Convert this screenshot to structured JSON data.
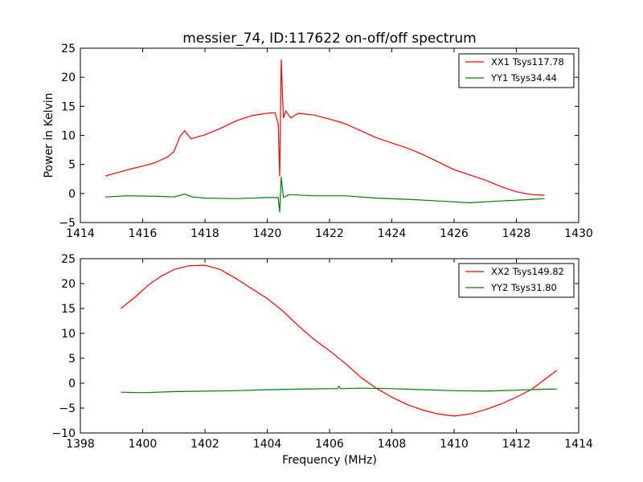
{
  "title": "messier_74, ID:117622 on-off/off spectrum",
  "chart_data": [
    {
      "type": "line",
      "ylabel": "Power in Kelvin",
      "xlabel": "",
      "xlim": [
        1414,
        1430
      ],
      "ylim": [
        -5,
        25
      ],
      "xticks": [
        "1414",
        "1416",
        "1418",
        "1420",
        "1422",
        "1424",
        "1426",
        "1428",
        "1430"
      ],
      "yticks": [
        "25",
        "20",
        "15",
        "10",
        "5",
        "0",
        "−5"
      ],
      "legend_position": "top-right",
      "series": [
        {
          "name": "XX1 Tsys117.78",
          "color": "#ff0000",
          "points": [
            [
              1414.8,
              3.0
            ],
            [
              1415.2,
              3.6
            ],
            [
              1415.6,
              4.2
            ],
            [
              1416.0,
              4.7
            ],
            [
              1416.4,
              5.3
            ],
            [
              1416.8,
              6.3
            ],
            [
              1417.0,
              7.2
            ],
            [
              1417.2,
              9.8
            ],
            [
              1417.35,
              10.8
            ],
            [
              1417.55,
              9.4
            ],
            [
              1418.0,
              10.1
            ],
            [
              1418.5,
              11.2
            ],
            [
              1419.0,
              12.5
            ],
            [
              1419.5,
              13.4
            ],
            [
              1420.0,
              13.8
            ],
            [
              1420.25,
              13.9
            ],
            [
              1420.35,
              12.0
            ],
            [
              1420.4,
              3.0
            ],
            [
              1420.45,
              23.0
            ],
            [
              1420.52,
              13.0
            ],
            [
              1420.6,
              14.2
            ],
            [
              1420.75,
              13.0
            ],
            [
              1421.0,
              13.8
            ],
            [
              1421.5,
              13.5
            ],
            [
              1422.0,
              12.8
            ],
            [
              1422.5,
              12.0
            ],
            [
              1423.0,
              10.8
            ],
            [
              1423.5,
              9.6
            ],
            [
              1424.0,
              8.7
            ],
            [
              1424.5,
              7.8
            ],
            [
              1425.0,
              6.7
            ],
            [
              1425.5,
              5.4
            ],
            [
              1426.0,
              4.1
            ],
            [
              1426.5,
              3.2
            ],
            [
              1427.0,
              2.3
            ],
            [
              1427.5,
              1.2
            ],
            [
              1428.0,
              0.3
            ],
            [
              1428.5,
              -0.2
            ],
            [
              1428.9,
              -0.3
            ]
          ]
        },
        {
          "name": "YY1 Tsys34.44",
          "color": "#008000",
          "points": [
            [
              1414.8,
              -0.6
            ],
            [
              1415.5,
              -0.4
            ],
            [
              1416.5,
              -0.5
            ],
            [
              1417.0,
              -0.6
            ],
            [
              1417.35,
              -0.1
            ],
            [
              1417.6,
              -0.6
            ],
            [
              1418.0,
              -0.8
            ],
            [
              1419.0,
              -0.9
            ],
            [
              1420.0,
              -0.7
            ],
            [
              1420.35,
              -0.7
            ],
            [
              1420.4,
              -3.2
            ],
            [
              1420.45,
              2.8
            ],
            [
              1420.52,
              -0.7
            ],
            [
              1420.7,
              -0.2
            ],
            [
              1421.5,
              -0.4
            ],
            [
              1422.5,
              -0.4
            ],
            [
              1423.5,
              -0.8
            ],
            [
              1424.5,
              -1.0
            ],
            [
              1425.5,
              -1.3
            ],
            [
              1426.5,
              -1.6
            ],
            [
              1427.5,
              -1.3
            ],
            [
              1428.5,
              -1.0
            ],
            [
              1428.9,
              -0.9
            ]
          ]
        }
      ]
    },
    {
      "type": "line",
      "ylabel": "",
      "xlabel": "Frequency (MHz)",
      "xlim": [
        1398,
        1414
      ],
      "ylim": [
        -10,
        25
      ],
      "xticks": [
        "1398",
        "1400",
        "1402",
        "1404",
        "1406",
        "1408",
        "1410",
        "1412",
        "1414"
      ],
      "yticks": [
        "25",
        "20",
        "15",
        "10",
        "5",
        "0",
        "−5",
        "−10"
      ],
      "legend_position": "top-right",
      "series": [
        {
          "name": "XX2 Tsys149.82",
          "color": "#ff0000",
          "points": [
            [
              1399.3,
              15.0
            ],
            [
              1399.8,
              17.5
            ],
            [
              1400.2,
              19.8
            ],
            [
              1400.6,
              21.5
            ],
            [
              1401.0,
              22.8
            ],
            [
              1401.5,
              23.6
            ],
            [
              1402.0,
              23.7
            ],
            [
              1402.5,
              22.8
            ],
            [
              1403.0,
              21.0
            ],
            [
              1403.5,
              19.0
            ],
            [
              1404.0,
              17.0
            ],
            [
              1404.5,
              14.5
            ],
            [
              1405.0,
              11.5
            ],
            [
              1405.5,
              8.8
            ],
            [
              1406.0,
              6.5
            ],
            [
              1406.5,
              4.0
            ],
            [
              1407.0,
              1.2
            ],
            [
              1407.5,
              -1.0
            ],
            [
              1408.0,
              -2.8
            ],
            [
              1408.5,
              -4.3
            ],
            [
              1409.0,
              -5.4
            ],
            [
              1409.5,
              -6.2
            ],
            [
              1410.0,
              -6.6
            ],
            [
              1410.5,
              -6.2
            ],
            [
              1411.0,
              -5.3
            ],
            [
              1411.5,
              -4.2
            ],
            [
              1412.0,
              -2.8
            ],
            [
              1412.5,
              -1.2
            ],
            [
              1413.0,
              1.2
            ],
            [
              1413.3,
              2.6
            ]
          ]
        },
        {
          "name": "YY2 Tsys31.80",
          "color": "#008000",
          "points": [
            [
              1399.3,
              -1.8
            ],
            [
              1400.0,
              -1.9
            ],
            [
              1401.0,
              -1.7
            ],
            [
              1402.0,
              -1.6
            ],
            [
              1403.0,
              -1.5
            ],
            [
              1404.0,
              -1.3
            ],
            [
              1405.0,
              -1.2
            ],
            [
              1406.0,
              -1.1
            ],
            [
              1406.25,
              -1.1
            ],
            [
              1406.3,
              -0.6
            ],
            [
              1406.35,
              -1.1
            ],
            [
              1407.0,
              -1.0
            ],
            [
              1408.0,
              -1.1
            ],
            [
              1409.0,
              -1.3
            ],
            [
              1410.0,
              -1.5
            ],
            [
              1411.0,
              -1.6
            ],
            [
              1412.0,
              -1.4
            ],
            [
              1413.0,
              -1.2
            ],
            [
              1413.3,
              -1.2
            ]
          ]
        }
      ]
    }
  ]
}
